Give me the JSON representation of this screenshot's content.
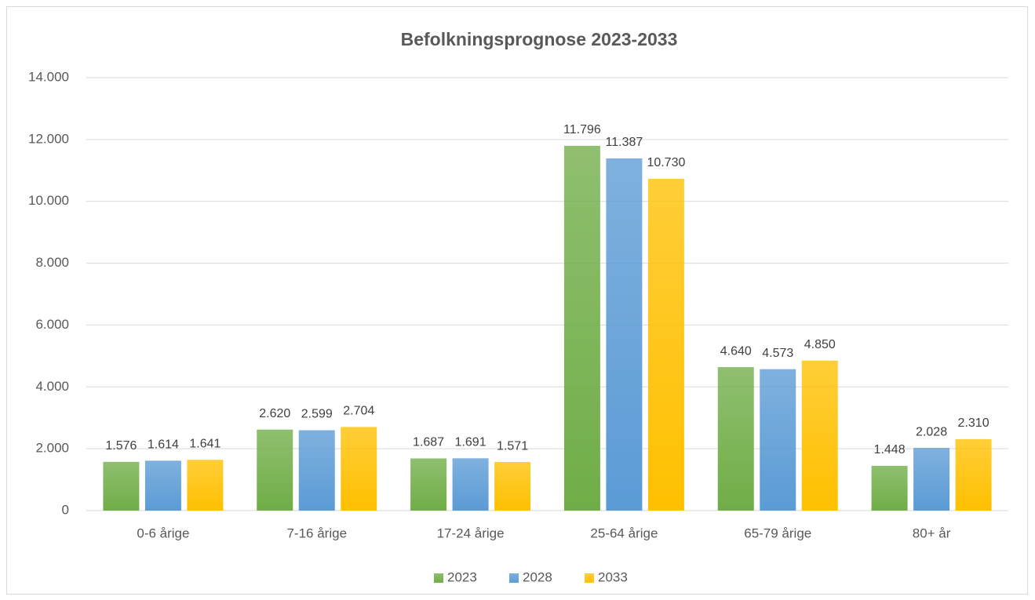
{
  "chart_data": {
    "type": "bar",
    "title": "Befolkningsprognose 2023-2033",
    "categories": [
      "0-6 årige",
      "7-16 årige",
      "17-24 årige",
      "25-64 årige",
      "65-79 årige",
      "80+ år"
    ],
    "series": [
      {
        "name": "2023",
        "color": "#70ad47",
        "values": [
          1576,
          2620,
          1687,
          11796,
          4640,
          1448
        ],
        "value_labels": [
          "1.576",
          "2.620",
          "1.687",
          "11.796",
          "4.640",
          "1.448"
        ]
      },
      {
        "name": "2028",
        "color": "#5b9bd5",
        "values": [
          1614,
          2599,
          1691,
          11387,
          4573,
          2028
        ],
        "value_labels": [
          "1.614",
          "2.599",
          "1.691",
          "11.387",
          "4.573",
          "2.028"
        ]
      },
      {
        "name": "2033",
        "color": "#ffc000",
        "values": [
          1641,
          2704,
          1571,
          10730,
          4850,
          2310
        ],
        "value_labels": [
          "1.641",
          "2.704",
          "1.571",
          "10.730",
          "4.850",
          "2.310"
        ]
      }
    ],
    "ylim": [
      0,
      14000
    ],
    "yticks": [
      0,
      {
        "value": 2000,
        "label": "2.000"
      },
      {
        "value": 4000,
        "label": "4.000"
      },
      {
        "value": 6000,
        "label": "6.000"
      },
      {
        "value": 8000,
        "label": "8.000"
      },
      {
        "value": 10000,
        "label": "10.000"
      },
      {
        "value": 12000,
        "label": "12.000"
      },
      {
        "value": 14000,
        "label": "14.000"
      }
    ],
    "grid": true,
    "legend": "bottom"
  }
}
